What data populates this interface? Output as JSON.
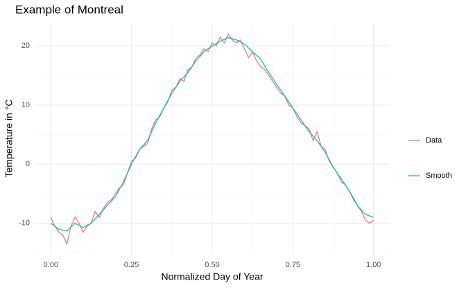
{
  "chart_data": {
    "type": "line",
    "title": "Example of Montreal",
    "x_label": "Normalized Day of Year",
    "y_label": "Temperature in °C",
    "xlim": [
      -0.05,
      1.05
    ],
    "ylim": [
      -15.3,
      23.9
    ],
    "xticks": [
      {
        "value": 0,
        "label": "0.00"
      },
      {
        "value": 0.25,
        "label": "0.25"
      },
      {
        "value": 0.5,
        "label": "0.50"
      },
      {
        "value": 0.75,
        "label": "0.75"
      },
      {
        "value": 1,
        "label": "1.00"
      }
    ],
    "yticks": [
      -10,
      0,
      10,
      20
    ],
    "xminor": [
      0.125,
      0.375,
      0.625,
      0.875
    ],
    "yminor": [
      -15,
      -5,
      5,
      15
    ],
    "grid": true,
    "legend": "right",
    "series": [
      {
        "name": "Data",
        "color": "#F8766D",
        "x": [
          0,
          0.0125,
          0.025,
          0.0375,
          0.05,
          0.0625,
          0.075,
          0.0875,
          0.1,
          0.1125,
          0.125,
          0.1375,
          0.15,
          0.1625,
          0.175,
          0.1875,
          0.2,
          0.2125,
          0.225,
          0.2375,
          0.25,
          0.2625,
          0.275,
          0.2875,
          0.3,
          0.3125,
          0.325,
          0.3375,
          0.35,
          0.3625,
          0.375,
          0.3875,
          0.4,
          0.4125,
          0.425,
          0.4375,
          0.45,
          0.4625,
          0.475,
          0.4875,
          0.5,
          0.5125,
          0.525,
          0.5375,
          0.55,
          0.5625,
          0.575,
          0.5875,
          0.6,
          0.6125,
          0.625,
          0.6375,
          0.65,
          0.6625,
          0.675,
          0.6875,
          0.7,
          0.7125,
          0.725,
          0.7375,
          0.75,
          0.7625,
          0.775,
          0.7875,
          0.8,
          0.8125,
          0.825,
          0.8375,
          0.85,
          0.8625,
          0.875,
          0.8875,
          0.9,
          0.9125,
          0.925,
          0.9375,
          0.95,
          0.9625,
          0.975,
          0.9875,
          1
        ],
        "values": [
          -9,
          -10.5,
          -11.5,
          -12,
          -13.5,
          -10.5,
          -9,
          -10,
          -11.5,
          -10.5,
          -10,
          -8,
          -9,
          -7.5,
          -6.5,
          -6,
          -5,
          -4,
          -3.5,
          -1.5,
          0.5,
          1,
          2.5,
          3,
          3.5,
          6,
          7.5,
          8,
          9.5,
          10.5,
          12.5,
          13,
          14.5,
          14,
          16,
          16.5,
          18,
          18.5,
          19.5,
          19,
          20.5,
          20,
          21.5,
          20.5,
          22,
          21,
          20.5,
          21,
          19.5,
          18,
          19,
          17.5,
          16.5,
          16,
          15,
          14,
          13,
          12,
          11.5,
          10,
          9.5,
          8,
          7,
          6.5,
          6,
          4,
          5.5,
          3,
          2.5,
          0.5,
          -0.5,
          -1.5,
          -3,
          -3.5,
          -4.5,
          -6,
          -7,
          -8,
          -9.5,
          -10,
          -9.5
        ]
      },
      {
        "name": "Smooth",
        "color": "#00BFC4",
        "x": [
          0,
          0.025,
          0.05,
          0.075,
          0.1,
          0.125,
          0.15,
          0.175,
          0.2,
          0.225,
          0.25,
          0.275,
          0.3,
          0.325,
          0.35,
          0.375,
          0.4,
          0.425,
          0.45,
          0.475,
          0.5,
          0.525,
          0.55,
          0.575,
          0.6,
          0.625,
          0.65,
          0.675,
          0.7,
          0.725,
          0.75,
          0.775,
          0.8,
          0.825,
          0.85,
          0.875,
          0.9,
          0.925,
          0.95,
          0.975,
          1
        ],
        "values": [
          -10,
          -11,
          -11.3,
          -10,
          -10.7,
          -10,
          -8.5,
          -7,
          -5.5,
          -3,
          0,
          2.5,
          4,
          7,
          9.5,
          12,
          14,
          15.5,
          17.5,
          19,
          20,
          20.8,
          21.4,
          21,
          20.3,
          19,
          17.8,
          15.5,
          13.5,
          11.5,
          9.5,
          7.5,
          5.5,
          4,
          2,
          -0.5,
          -2.5,
          -4.5,
          -7,
          -8.5,
          -9
        ]
      }
    ]
  }
}
